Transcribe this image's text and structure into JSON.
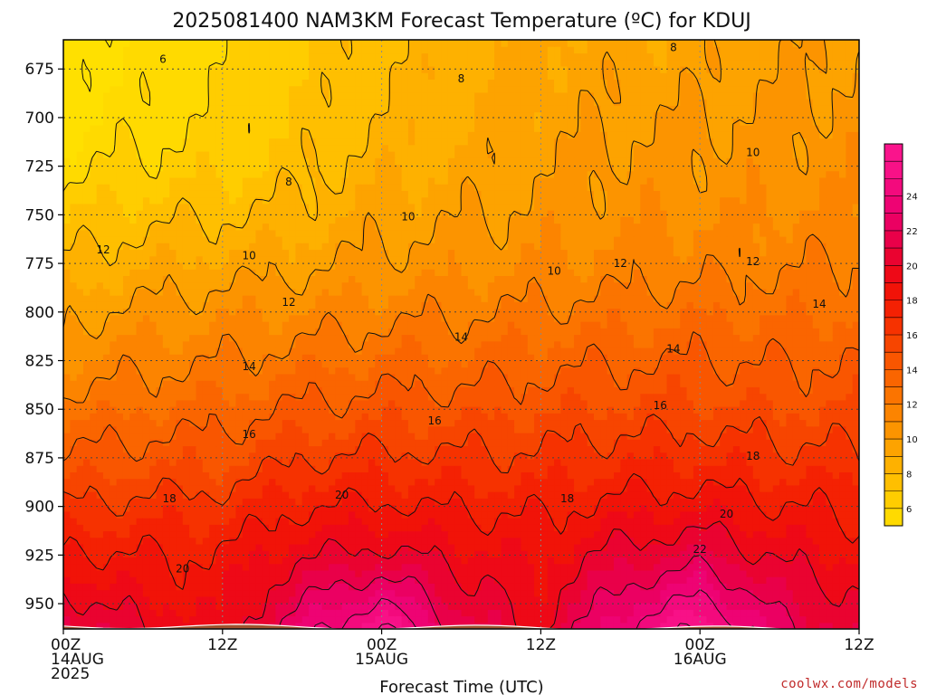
{
  "chart_data": {
    "type": "contour",
    "title": "2025081400 NAM3KM Forecast Temperature (ºC) for KDUJ",
    "xlabel": "Forecast Time (UTC)",
    "ylabel": "",
    "credit": "coolwx.com/models",
    "x_axis": {
      "unit": "hours since 2025-08-14 00Z",
      "range": [
        0,
        60
      ],
      "ticks": [
        {
          "value": 0,
          "lines": [
            "00Z",
            "14AUG",
            "2025"
          ]
        },
        {
          "value": 12,
          "lines": [
            "12Z"
          ]
        },
        {
          "value": 24,
          "lines": [
            "00Z",
            "15AUG"
          ]
        },
        {
          "value": 36,
          "lines": [
            "12Z"
          ]
        },
        {
          "value": 48,
          "lines": [
            "00Z",
            "16AUG"
          ]
        },
        {
          "value": 60,
          "lines": [
            "12Z"
          ]
        }
      ]
    },
    "y_axis": {
      "unit": "hPa",
      "range": [
        963,
        660
      ],
      "inverted": true,
      "ticks": [
        675,
        700,
        725,
        750,
        775,
        800,
        825,
        850,
        875,
        900,
        925,
        950
      ]
    },
    "grid": true,
    "ground_level_hPa": 963,
    "levels_hPa": [
      950,
      925,
      900,
      875,
      850,
      825,
      800,
      775,
      750,
      725,
      700,
      675
    ],
    "colorbar": {
      "ticks": [
        6,
        8,
        10,
        12,
        14,
        16,
        18,
        20,
        22,
        24
      ],
      "range": [
        5,
        27
      ],
      "interval": 1,
      "position": "right"
    },
    "contour_interval": 2,
    "temperature_C": {
      "times_h": [
        0,
        6,
        12,
        18,
        24,
        30,
        36,
        42,
        48,
        54,
        60
      ],
      "columns": [
        [
          20.5,
          18.2,
          16.1,
          14.2,
          12.5,
          11.0,
          9.6,
          8.2,
          6.8,
          5.5,
          4.6,
          4.2
        ],
        [
          19.3,
          18.0,
          16.4,
          14.6,
          13.0,
          11.6,
          10.3,
          8.9,
          7.6,
          6.3,
          5.6,
          5.3
        ],
        [
          18.7,
          18.1,
          16.6,
          14.8,
          13.4,
          12.0,
          10.7,
          9.3,
          7.9,
          6.7,
          6.1,
          6.0
        ],
        [
          22.0,
          19.8,
          17.9,
          15.9,
          14.2,
          12.6,
          11.1,
          9.7,
          8.4,
          7.6,
          7.2,
          7.1
        ],
        [
          24.2,
          20.4,
          18.2,
          16.3,
          14.6,
          13.1,
          11.6,
          10.3,
          9.5,
          8.7,
          8.1,
          7.9
        ],
        [
          20.8,
          19.4,
          17.8,
          16.2,
          14.6,
          13.2,
          11.8,
          10.6,
          9.8,
          9.2,
          8.9,
          8.8
        ],
        [
          19.5,
          18.8,
          17.7,
          16.2,
          14.9,
          13.6,
          12.2,
          11.0,
          10.4,
          9.9,
          9.6,
          9.4
        ],
        [
          22.8,
          20.5,
          18.4,
          16.7,
          15.2,
          13.9,
          12.5,
          11.3,
          10.7,
          10.3,
          9.9,
          9.5
        ],
        [
          24.5,
          21.3,
          18.8,
          16.9,
          15.3,
          14.0,
          12.8,
          11.6,
          10.9,
          10.4,
          10.0,
          9.6
        ],
        [
          21.4,
          19.7,
          18.0,
          16.4,
          15.0,
          13.9,
          12.8,
          11.8,
          11.0,
          10.5,
          10.2,
          9.9
        ],
        [
          20.0,
          18.9,
          17.7,
          16.3,
          15.0,
          14.1,
          13.1,
          12.1,
          11.3,
          10.8,
          10.4,
          10.1
        ]
      ]
    },
    "contour_labels": [
      {
        "text": "6",
        "t": 7.5,
        "p": 670
      },
      {
        "text": "8",
        "t": 17.0,
        "p": 733
      },
      {
        "text": "8",
        "t": 30.0,
        "p": 680
      },
      {
        "text": "8",
        "t": 46.0,
        "p": 664
      },
      {
        "text": "10",
        "t": 14.0,
        "p": 771
      },
      {
        "text": "10",
        "t": 26.0,
        "p": 751
      },
      {
        "text": "10",
        "t": 37.0,
        "p": 779
      },
      {
        "text": "10",
        "t": 52.0,
        "p": 718
      },
      {
        "text": "12",
        "t": 3.0,
        "p": 768
      },
      {
        "text": "12",
        "t": 17.0,
        "p": 795
      },
      {
        "text": "12",
        "t": 42.0,
        "p": 775
      },
      {
        "text": "12",
        "t": 52.0,
        "p": 774
      },
      {
        "text": "14",
        "t": 14.0,
        "p": 828
      },
      {
        "text": "14",
        "t": 30.0,
        "p": 813
      },
      {
        "text": "14",
        "t": 46.0,
        "p": 819
      },
      {
        "text": "14",
        "t": 57.0,
        "p": 796
      },
      {
        "text": "16",
        "t": 14.0,
        "p": 863
      },
      {
        "text": "16",
        "t": 28.0,
        "p": 856
      },
      {
        "text": "16",
        "t": 45.0,
        "p": 848
      },
      {
        "text": "18",
        "t": 8.0,
        "p": 896
      },
      {
        "text": "18",
        "t": 38.0,
        "p": 896
      },
      {
        "text": "18",
        "t": 52.0,
        "p": 874
      },
      {
        "text": "20",
        "t": 9.0,
        "p": 932
      },
      {
        "text": "20",
        "t": 21.0,
        "p": 894
      },
      {
        "text": "20",
        "t": 50.0,
        "p": 904
      },
      {
        "text": "22",
        "t": 48.0,
        "p": 922
      }
    ]
  }
}
